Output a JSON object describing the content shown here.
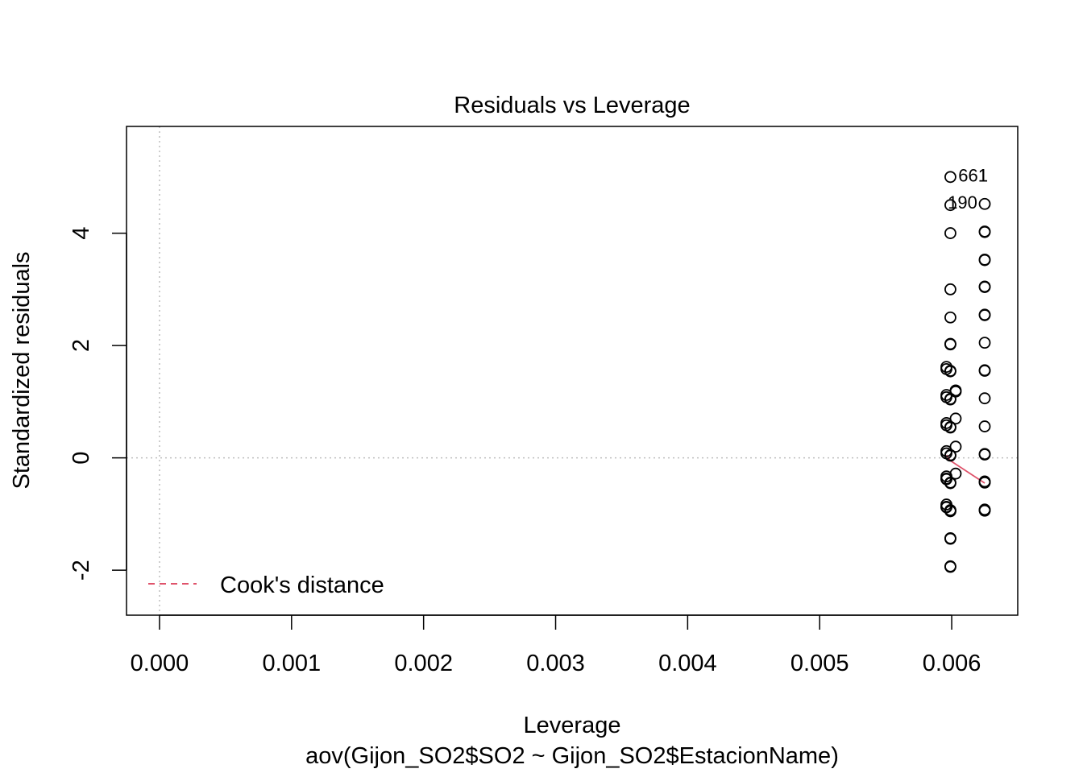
{
  "chart_data": {
    "type": "scatter",
    "title": "Residuals vs Leverage",
    "xlabel": "Leverage",
    "subtitle": "aov(Gijon_SO2$SO2 ~ Gijon_SO2$EstacionName)",
    "ylabel": "Standardized residuals",
    "xlim": [
      -0.00025,
      0.0065
    ],
    "ylim": [
      -2.8,
      5.9
    ],
    "x_ticks": [
      0.0,
      0.001,
      0.002,
      0.003,
      0.004,
      0.005,
      0.006
    ],
    "x_tick_labels": [
      "0.000",
      "0.001",
      "0.002",
      "0.003",
      "0.004",
      "0.005",
      "0.006"
    ],
    "y_ticks": [
      -2,
      0,
      2,
      4
    ],
    "y_tick_labels": [
      "-2",
      "0",
      "2",
      "4"
    ],
    "reference_lines": {
      "h": 0,
      "v": 0,
      "style": "dotted",
      "color": "#bebebe"
    },
    "legend": {
      "entries": [
        "Cook's distance"
      ],
      "placement": "bottom-left",
      "line_color": "#df536b"
    },
    "point_labels": [
      {
        "text": "661",
        "x": 0.00605,
        "y": 5.02
      },
      {
        "text": "1",
        "x": 0.0062,
        "y": 5.02
      },
      {
        "text": "190",
        "x": 0.00597,
        "y": 4.54
      }
    ],
    "smoother": {
      "color": "#df536b",
      "x": [
        0.00596,
        0.00599,
        0.00625
      ],
      "y": [
        0.05,
        -0.05,
        -0.45
      ]
    },
    "series": [
      {
        "x": [
          0.00599,
          0.00599,
          0.00599,
          0.00599,
          0.00599,
          0.00599,
          0.00599,
          0.00599,
          0.00599,
          0.00599,
          0.00599,
          0.00599,
          0.00599,
          0.00599,
          0.00599,
          0.00599,
          0.00599,
          0.00599,
          0.00599,
          0.00599,
          0.00599,
          0.00599,
          0.00599,
          0.00599
        ],
        "y": [
          5.0,
          4.5,
          4.0,
          3.0,
          2.5,
          2.03,
          2.02,
          1.55,
          1.54,
          1.05,
          1.04,
          0.55,
          0.54,
          0.05,
          0.04,
          -0.45,
          -0.44,
          -0.93,
          -0.94,
          -1.43,
          -1.44,
          -1.93,
          -1.94,
          -0.95
        ]
      },
      {
        "x": [
          0.00596,
          0.00596,
          0.00596,
          0.00596,
          0.00596,
          0.00596,
          0.00596,
          0.00596,
          0.00596,
          0.00596,
          0.00596,
          0.00596,
          0.00596,
          0.00596
        ],
        "y": [
          1.62,
          1.58,
          1.12,
          1.08,
          0.62,
          0.58,
          0.12,
          0.08,
          -0.33,
          -0.37,
          -0.38,
          -0.83,
          -0.87,
          -0.88
        ]
      },
      {
        "x": [
          0.00603,
          0.00603,
          0.00603,
          0.00603,
          0.00603
        ],
        "y": [
          1.18,
          1.2,
          0.7,
          0.2,
          -0.28
        ]
      },
      {
        "x": [
          0.00625,
          0.00625,
          0.00625,
          0.00625,
          0.00625,
          0.00625,
          0.00625,
          0.00625,
          0.00625,
          0.00625,
          0.00625,
          0.00625,
          0.00625,
          0.00625,
          0.00625,
          0.00625,
          0.00625,
          0.00625,
          0.00625,
          0.00625,
          0.00625,
          0.00625
        ],
        "y": [
          4.52,
          4.03,
          4.02,
          3.53,
          3.52,
          3.04,
          2.54,
          2.05,
          1.55,
          1.06,
          0.56,
          0.07,
          0.06,
          -0.43,
          -0.42,
          -0.44,
          -0.92,
          -0.93,
          -0.94,
          1.56,
          2.55,
          3.05
        ]
      }
    ]
  }
}
